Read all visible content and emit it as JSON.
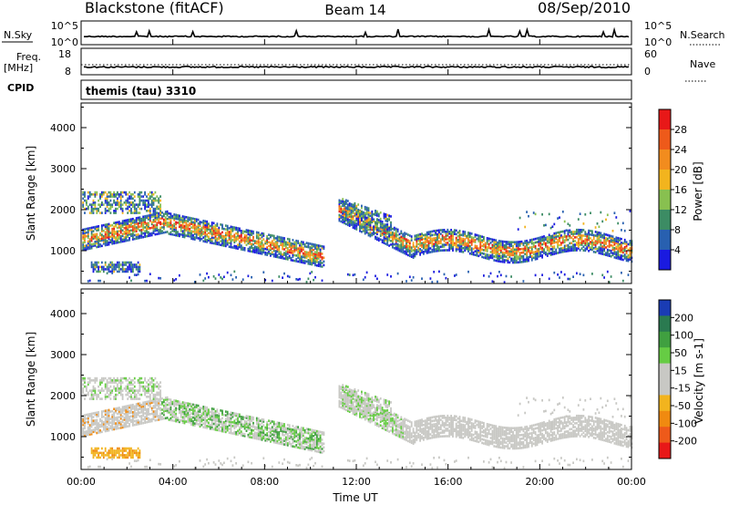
{
  "header": {
    "station": "Blackstone (fitACF)",
    "beam": "Beam 14",
    "date": "08/Sep/2010"
  },
  "params": {
    "nsky_label": "N.Sky",
    "nsky_top": "10^5",
    "nsky_bottom": "10^0",
    "nsearch_label": "N.Search",
    "nsearch_top": "10^5",
    "nsearch_bottom": "10^0",
    "freq_label_1": "Freq.",
    "freq_label_2": "[MHz]",
    "freq_top": "18",
    "freq_bottom": "8",
    "nave_label": "Nave",
    "nave_top": "60",
    "nave_bottom": "0",
    "cpid_label": "CPID",
    "cpid_value": "themis (tau) 3310"
  },
  "chart_data": [
    {
      "type": "heatmap",
      "name": "power",
      "ylabel": "Slant Range [km]",
      "yticks": [
        "4000",
        "3000",
        "2000",
        "1000"
      ],
      "ytick_values": [
        4000,
        3000,
        2000,
        1000
      ],
      "ylim": [
        200,
        4600
      ],
      "xlim_hours": [
        0,
        24
      ],
      "colorbar_label": "Power [dB]",
      "colorbar_ticks": [
        "28",
        "24",
        "20",
        "16",
        "12",
        "8",
        "4"
      ],
      "colorbar_colors": [
        "#e81818",
        "#ee5a1a",
        "#f28c1e",
        "#f2b41e",
        "#88c050",
        "#3c8c64",
        "#2860b0",
        "#1a1ae0"
      ],
      "echo_bands": [
        {
          "t0": 0.0,
          "t1": 3.8,
          "r0": 1150,
          "r1": 1700,
          "level": "high"
        },
        {
          "t0": 0.3,
          "t1": 3.5,
          "r0": 1900,
          "r1": 2500,
          "level": "mid"
        },
        {
          "t0": 0.4,
          "t1": 2.6,
          "r0": 520,
          "r1": 780,
          "level": "mid"
        },
        {
          "t0": 3.6,
          "t1": 10.5,
          "r0": 650,
          "r1": 1800,
          "level": "mixed"
        },
        {
          "t0": 11.3,
          "t1": 24.0,
          "r0": 950,
          "r1": 2300,
          "level": "mixed"
        }
      ]
    },
    {
      "type": "heatmap",
      "name": "velocity",
      "ylabel": "Slant Range [km]",
      "yticks": [
        "4000",
        "3000",
        "2000",
        "1000"
      ],
      "ytick_values": [
        4000,
        3000,
        2000,
        1000
      ],
      "ylim": [
        200,
        4600
      ],
      "xlim_hours": [
        0,
        24
      ],
      "colorbar_label": "Velocity [m s-1]",
      "colorbar_ticks": [
        "200",
        "100",
        "50",
        "15",
        "-15",
        "-50",
        "-100",
        "-200"
      ],
      "colorbar_colors": [
        "#1a3cb4",
        "#2a7a50",
        "#40a040",
        "#66cc44",
        "#c8c8c4",
        "#c8c8c4",
        "#f2b41e",
        "#f08a10",
        "#ee5a1a",
        "#e81818"
      ]
    }
  ],
  "xaxis": {
    "label": "Time UT",
    "ticks": [
      "00:00",
      "04:00",
      "08:00",
      "12:00",
      "16:00",
      "20:00",
      "00:00"
    ],
    "tick_hours": [
      0,
      4,
      8,
      12,
      16,
      20,
      24
    ]
  }
}
